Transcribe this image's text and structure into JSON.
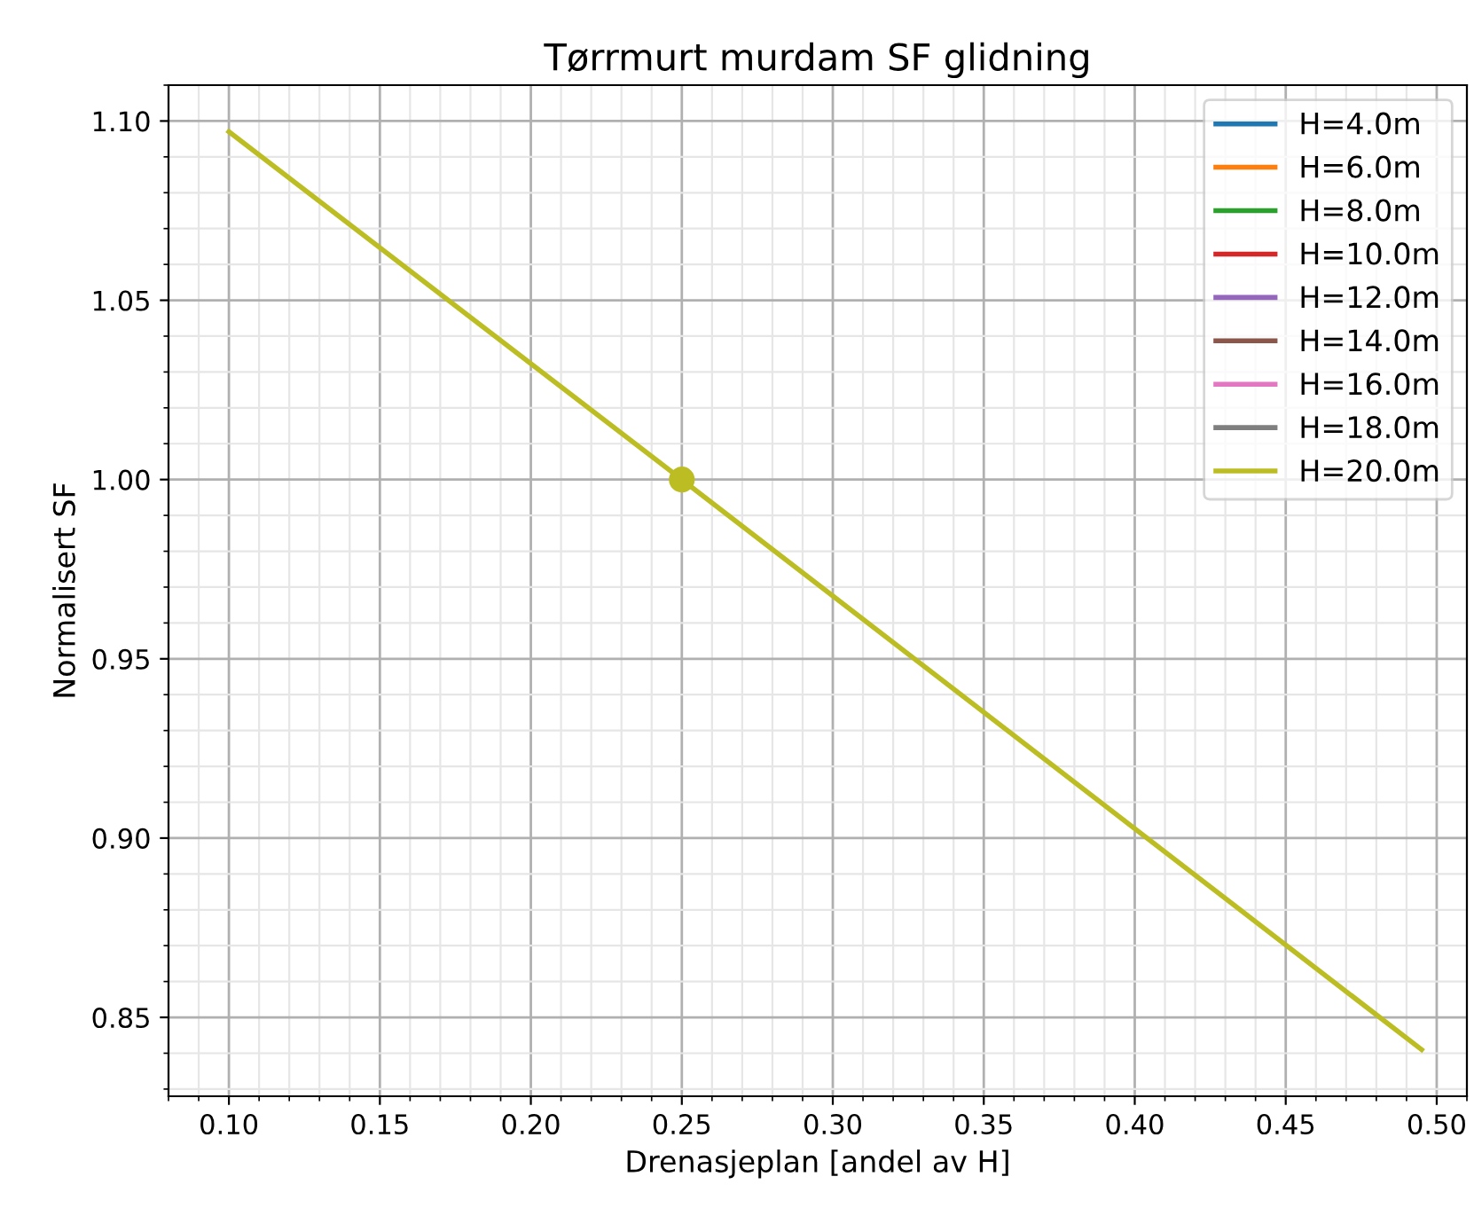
{
  "chart_data": {
    "type": "line",
    "title": "Tørrmurt murdam SF glidning",
    "xlabel": "Drenasjeplan [andel av H]",
    "ylabel": "Normalisert SF",
    "xlim": [
      0.08,
      0.51
    ],
    "xticks": [
      {
        "value": 0.1,
        "label": "0.10"
      },
      {
        "value": 0.15,
        "label": "0.15"
      },
      {
        "value": 0.2,
        "label": "0.20"
      },
      {
        "value": 0.25,
        "label": "0.25"
      },
      {
        "value": 0.3,
        "label": "0.30"
      },
      {
        "value": 0.35,
        "label": "0.35"
      },
      {
        "value": 0.4,
        "label": "0.40"
      },
      {
        "value": 0.45,
        "label": "0.45"
      },
      {
        "value": 0.5,
        "label": "0.50"
      }
    ],
    "ylim": [
      0.828,
      1.11
    ],
    "yticks": [
      {
        "value": 0.85,
        "label": "0.85"
      },
      {
        "value": 0.9,
        "label": "0.90"
      },
      {
        "value": 0.95,
        "label": "0.95"
      },
      {
        "value": 1.0,
        "label": "1.00"
      },
      {
        "value": 1.05,
        "label": "1.05"
      },
      {
        "value": 1.1,
        "label": "1.10"
      }
    ],
    "grid": true,
    "legend": "top right",
    "x": [
      0.1,
      0.25,
      0.495
    ],
    "series": [
      {
        "name": "H=4.0m",
        "color": "#1f77b4",
        "values": [
          null,
          null,
          null
        ]
      },
      {
        "name": "H=6.0m",
        "color": "#ff7f0e",
        "values": [
          null,
          null,
          null
        ]
      },
      {
        "name": "H=8.0m",
        "color": "#2ca02c",
        "values": [
          null,
          null,
          null
        ]
      },
      {
        "name": "H=10.0m",
        "color": "#d62728",
        "values": [
          null,
          null,
          null
        ]
      },
      {
        "name": "H=12.0m",
        "color": "#9467bd",
        "values": [
          null,
          null,
          null
        ]
      },
      {
        "name": "H=14.0m",
        "color": "#8c564b",
        "values": [
          null,
          null,
          null
        ]
      },
      {
        "name": "H=16.0m",
        "color": "#e377c2",
        "values": [
          null,
          null,
          null
        ]
      },
      {
        "name": "H=18.0m",
        "color": "#7f7f7f",
        "values": [
          null,
          null,
          null
        ]
      },
      {
        "name": "H=20.0m",
        "color": "#bcbd22",
        "values": [
          1.097,
          1.0,
          0.841
        ]
      },
      {
        "type": "scatter",
        "color": "#bcbd22",
        "x": [
          0.25
        ],
        "values": [
          1.0
        ],
        "marker": "circle"
      }
    ]
  }
}
